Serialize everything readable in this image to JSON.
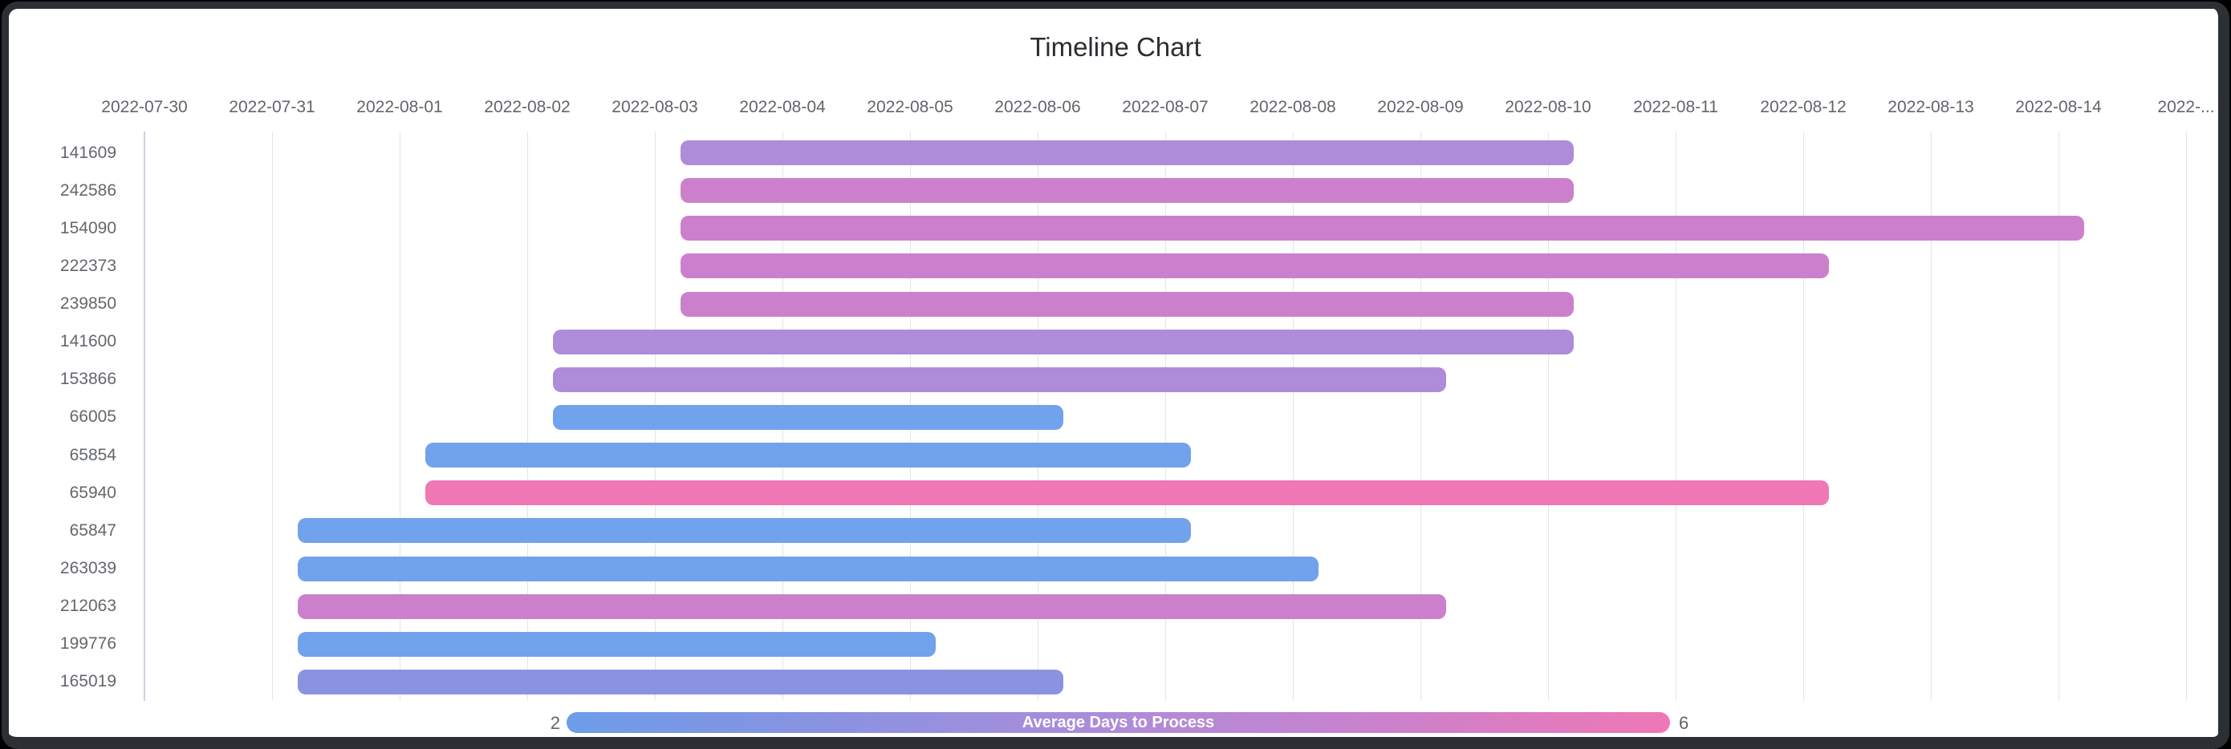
{
  "chart": {
    "title": "Timeline Chart",
    "legend": {
      "label": "Average Days to Process",
      "min_label": "2",
      "max_label": "6",
      "min_value": 2,
      "max_value": 6,
      "gradient_stops": [
        "#6d9de9",
        "#8b92e1",
        "#ae8cd9",
        "#cc80cc",
        "#ef78b5"
      ]
    }
  },
  "chart_data": {
    "type": "bar",
    "subtype": "horizontal-timeline-gantt",
    "title": "Timeline Chart",
    "xlabel": "",
    "ylabel": "",
    "grid": "vertical-daily-gridlines",
    "legend_position": "bottom-center-colorbar",
    "x_tick_labels": [
      "2022-07-30",
      "2022-07-31",
      "2022-08-01",
      "2022-08-02",
      "2022-08-03",
      "2022-08-04",
      "2022-08-05",
      "2022-08-06",
      "2022-08-07",
      "2022-08-08",
      "2022-08-09",
      "2022-08-10",
      "2022-08-11",
      "2022-08-12",
      "2022-08-13",
      "2022-08-14",
      "2022-..."
    ],
    "x_range_days_from_2022_07_30": [
      0,
      16.35
    ],
    "categories": [
      "141609",
      "242586",
      "154090",
      "222373",
      "239850",
      "141600",
      "153866",
      "66005",
      "65854",
      "65940",
      "65847",
      "263039",
      "212063",
      "199776",
      "165019"
    ],
    "colorbar": {
      "label": "Average Days to Process",
      "min": 2,
      "max": 6,
      "gradient_stops": [
        "#6d9de9",
        "#8b92e1",
        "#ae8cd9",
        "#cc80cc",
        "#ef78b5"
      ]
    },
    "tasks": [
      {
        "id": "141609",
        "start": "2022-08-03",
        "end": "2022-08-10",
        "start_day": 4.2,
        "end_day": 11.2,
        "duration_days": 7,
        "avg_days_to_process": 4,
        "color": "#ae8cd9"
      },
      {
        "id": "242586",
        "start": "2022-08-03",
        "end": "2022-08-10",
        "start_day": 4.2,
        "end_day": 11.2,
        "duration_days": 7,
        "avg_days_to_process": 5,
        "color": "#cc80cc"
      },
      {
        "id": "154090",
        "start": "2022-08-03",
        "end": "2022-08-14",
        "start_day": 4.2,
        "end_day": 15.2,
        "duration_days": 11,
        "avg_days_to_process": 5,
        "color": "#cc80cc"
      },
      {
        "id": "222373",
        "start": "2022-08-03",
        "end": "2022-08-12",
        "start_day": 4.2,
        "end_day": 13.2,
        "duration_days": 9,
        "avg_days_to_process": 5,
        "color": "#cc80cc"
      },
      {
        "id": "239850",
        "start": "2022-08-03",
        "end": "2022-08-10",
        "start_day": 4.2,
        "end_day": 11.2,
        "duration_days": 7,
        "avg_days_to_process": 5,
        "color": "#cc80cc"
      },
      {
        "id": "141600",
        "start": "2022-08-02",
        "end": "2022-08-10",
        "start_day": 3.2,
        "end_day": 11.2,
        "duration_days": 8,
        "avg_days_to_process": 4,
        "color": "#ae8cd9"
      },
      {
        "id": "153866",
        "start": "2022-08-02",
        "end": "2022-08-09",
        "start_day": 3.2,
        "end_day": 10.2,
        "duration_days": 7,
        "avg_days_to_process": 4,
        "color": "#ae8cd9"
      },
      {
        "id": "66005",
        "start": "2022-08-02",
        "end": "2022-08-06",
        "start_day": 3.2,
        "end_day": 7.2,
        "duration_days": 4,
        "avg_days_to_process": 2,
        "color": "#71a2ec"
      },
      {
        "id": "65854",
        "start": "2022-08-01",
        "end": "2022-08-07",
        "start_day": 2.2,
        "end_day": 8.2,
        "duration_days": 6,
        "avg_days_to_process": 2,
        "color": "#71a2ec"
      },
      {
        "id": "65940",
        "start": "2022-08-01",
        "end": "2022-08-12",
        "start_day": 2.2,
        "end_day": 13.2,
        "duration_days": 11,
        "avg_days_to_process": 6,
        "color": "#ef78b5"
      },
      {
        "id": "65847",
        "start": "2022-07-31",
        "end": "2022-08-07",
        "start_day": 1.2,
        "end_day": 8.2,
        "duration_days": 7,
        "avg_days_to_process": 2,
        "color": "#71a2ec"
      },
      {
        "id": "263039",
        "start": "2022-07-31",
        "end": "2022-08-08",
        "start_day": 1.2,
        "end_day": 9.2,
        "duration_days": 8,
        "avg_days_to_process": 2,
        "color": "#71a2ec"
      },
      {
        "id": "212063",
        "start": "2022-07-31",
        "end": "2022-08-09",
        "start_day": 1.2,
        "end_day": 10.2,
        "duration_days": 9,
        "avg_days_to_process": 5,
        "color": "#cc80cc"
      },
      {
        "id": "199776",
        "start": "2022-07-31",
        "end": "2022-08-05",
        "start_day": 1.2,
        "end_day": 6.2,
        "duration_days": 5,
        "avg_days_to_process": 2,
        "color": "#71a2ec"
      },
      {
        "id": "165019",
        "start": "2022-07-31",
        "end": "2022-08-06",
        "start_day": 1.2,
        "end_day": 7.2,
        "duration_days": 6,
        "avg_days_to_process": 3,
        "color": "#8b92e1"
      }
    ]
  }
}
